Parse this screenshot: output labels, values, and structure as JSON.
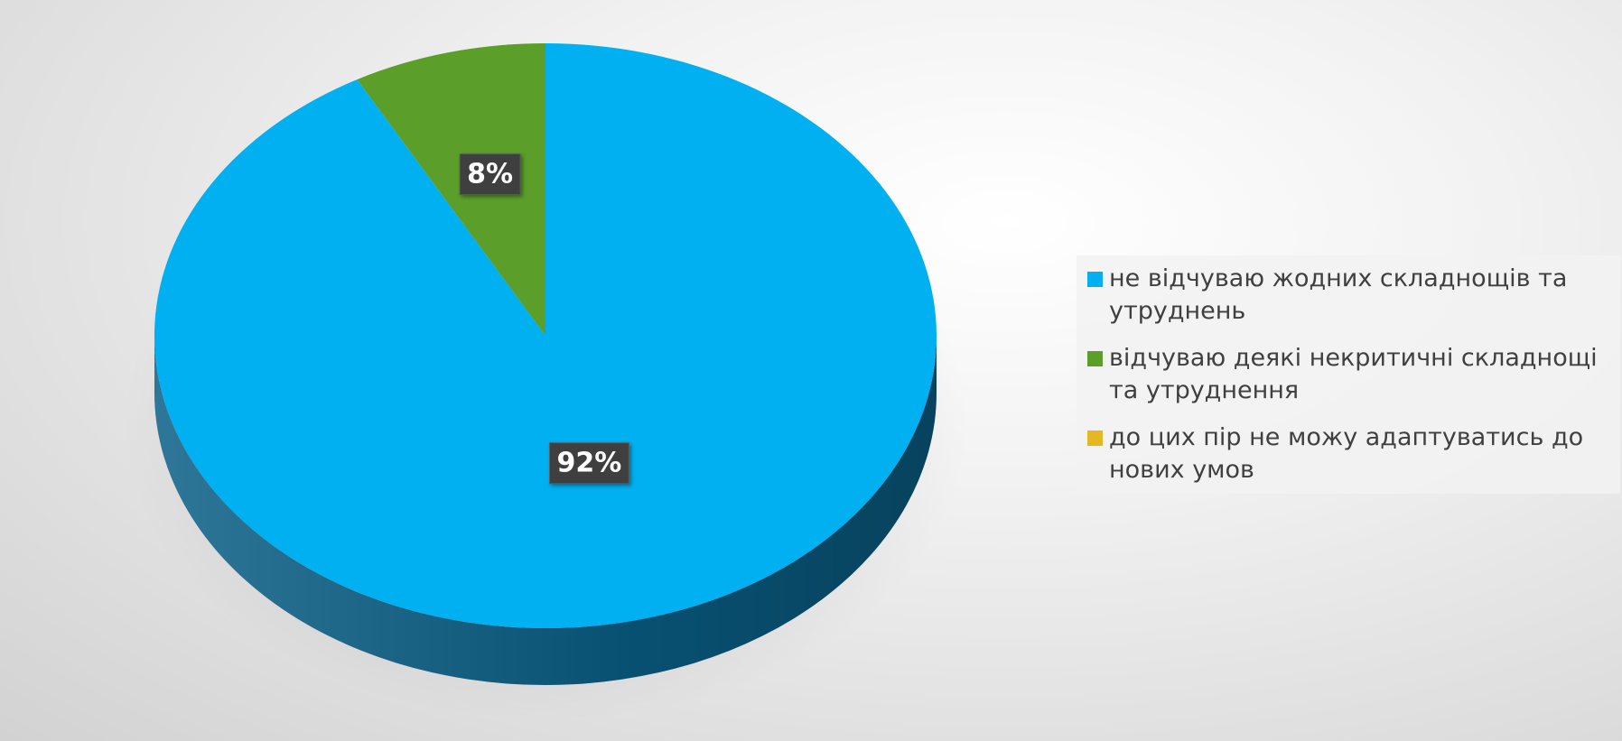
{
  "chart_data": {
    "type": "pie",
    "categories": [
      "не відчуваю жодних складнощів та утруднень",
      "відчуваю деякі некритичні складнощі та утруднення",
      "до цих пір не можу адаптуватись до нових умов"
    ],
    "values": [
      92,
      8,
      0
    ],
    "value_labels": [
      "92%",
      "8%",
      null
    ],
    "colors": [
      "#00b0f0",
      "#5b9f2a",
      "#e5b722"
    ],
    "side_colors": [
      "#0a5f86",
      "#3b6a1b",
      "#9a7a12"
    ],
    "legend": "right"
  }
}
